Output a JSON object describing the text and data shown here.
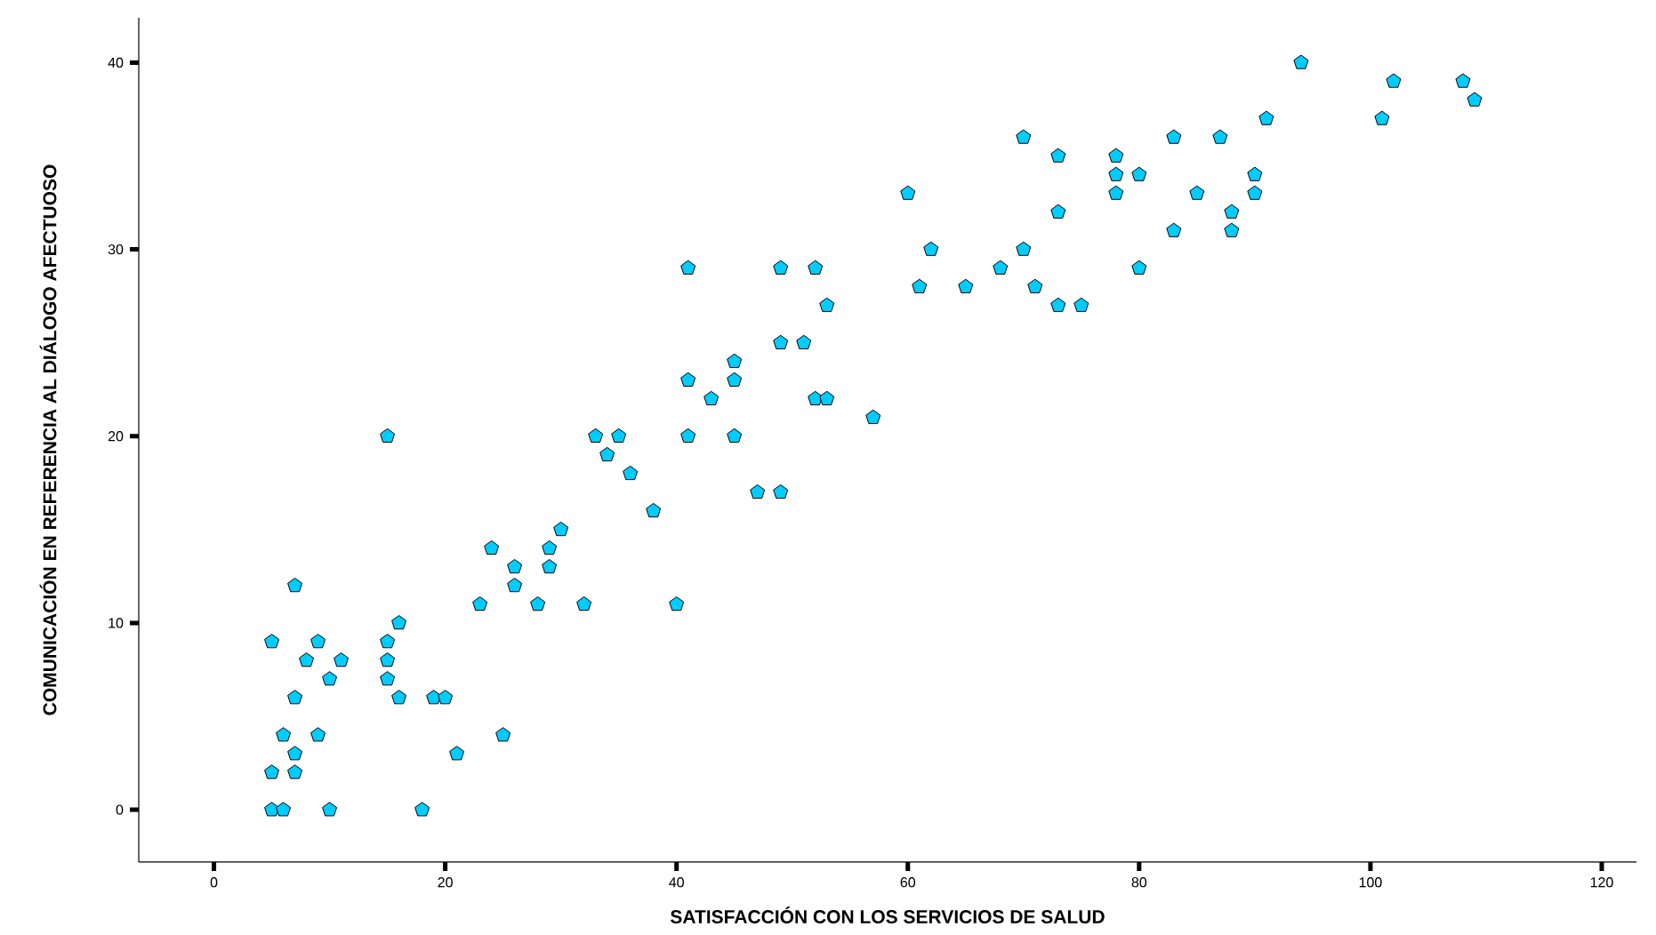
{
  "chart_data": {
    "type": "scatter",
    "xlabel": "SATISFACCIÓN CON LOS SERVICIOS DE SALUD",
    "ylabel": "COMUNICACIÓN EN REFERENCIA AL DIÁLOGO AFECTUOSO",
    "xlim": [
      -6.5,
      123
    ],
    "ylim": [
      -2.8,
      42.4
    ],
    "xticks": [
      0,
      20,
      40,
      60,
      80,
      100,
      120
    ],
    "yticks": [
      0,
      10,
      20,
      30,
      40
    ],
    "grid": false,
    "series": [
      {
        "color": "#00ccff",
        "x": [
          5,
          6,
          10,
          18,
          5,
          7,
          7,
          21,
          6,
          9,
          25,
          7,
          16,
          19,
          20,
          10,
          15,
          8,
          11,
          15,
          5,
          9,
          15,
          16,
          40,
          23,
          28,
          32,
          7,
          26,
          26,
          29,
          24,
          29,
          30,
          38,
          47,
          49,
          36,
          34,
          15,
          33,
          35,
          41,
          45,
          57,
          43,
          52,
          53,
          41,
          45,
          45,
          49,
          51,
          53,
          73,
          75,
          61,
          65,
          71,
          41,
          49,
          52,
          68,
          80,
          62,
          70,
          83,
          88,
          73,
          88,
          60,
          78,
          85,
          90,
          78,
          80,
          90,
          73,
          78,
          70,
          83,
          87,
          91,
          101,
          102,
          108,
          109,
          94
        ],
        "values": [
          0,
          0,
          0,
          0,
          2,
          2,
          3,
          3,
          4,
          4,
          4,
          6,
          6,
          6,
          6,
          7,
          7,
          8,
          8,
          8,
          9,
          9,
          9,
          10,
          11,
          11,
          11,
          11,
          12,
          12,
          13,
          13,
          14,
          14,
          15,
          16,
          17,
          17,
          18,
          19,
          20,
          20,
          20,
          20,
          20,
          21,
          22,
          22,
          22,
          23,
          23,
          24,
          25,
          25,
          27,
          27,
          27,
          28,
          28,
          28,
          29,
          29,
          29,
          29,
          29,
          30,
          30,
          31,
          31,
          32,
          32,
          33,
          33,
          33,
          33,
          34,
          34,
          34,
          35,
          35,
          36,
          36,
          36,
          37,
          37,
          39,
          39,
          38,
          40
        ]
      }
    ]
  }
}
